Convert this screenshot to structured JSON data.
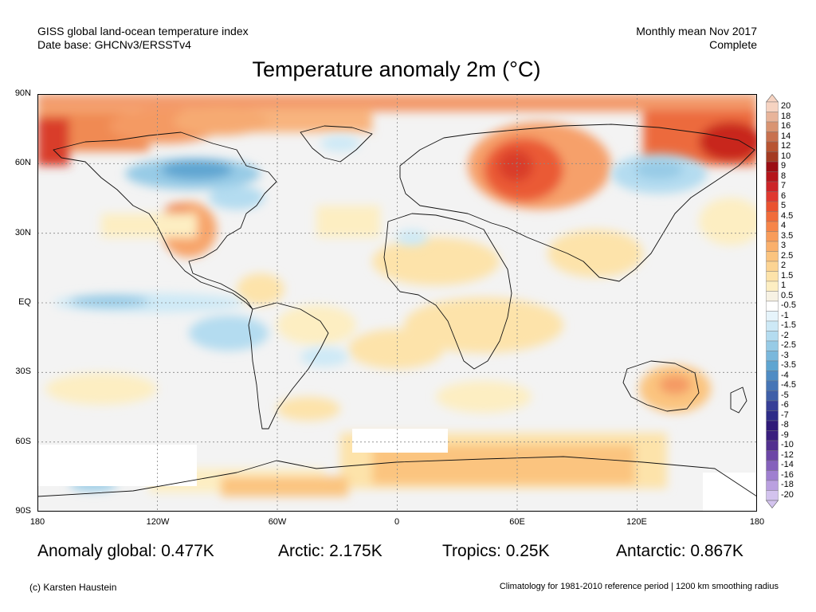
{
  "header": {
    "left_line1": "GISS global land-ocean temperature index",
    "left_line2": "Date base: GHCNv3/ERSSTv4",
    "right_line1": "Monthly mean Nov 2017",
    "right_line2": "Complete"
  },
  "title": "Temperature anomaly 2m (°C)",
  "axes": {
    "latitude_labels": [
      "90N",
      "60N",
      "30N",
      "EQ",
      "30S",
      "60S",
      "90S"
    ],
    "longitude_labels": [
      "180",
      "120W",
      "60W",
      "0",
      "60E",
      "120E",
      "180"
    ]
  },
  "legend": {
    "labels": [
      "20",
      "18",
      "16",
      "14",
      "12",
      "10",
      "9",
      "8",
      "7",
      "6",
      "5",
      "4.5",
      "4",
      "3.5",
      "3",
      "2.5",
      "2",
      "1.5",
      "1",
      "0.5",
      "-0.5",
      "-1",
      "-1.5",
      "-2",
      "-2.5",
      "-3",
      "-3.5",
      "-4",
      "-4.5",
      "-5",
      "-6",
      "-7",
      "-8",
      "-9",
      "-10",
      "-12",
      "-14",
      "-16",
      "-18",
      "-20"
    ],
    "colors": [
      "#f6d3c1",
      "#e8b49a",
      "#d99472",
      "#c8714f",
      "#b85432",
      "#a43b22",
      "#9b0e14",
      "#b5151b",
      "#cc2428",
      "#e0382f",
      "#ea5230",
      "#f16c3a",
      "#f68549",
      "#f89c5a",
      "#fab06c",
      "#fbc47f",
      "#fcd493",
      "#fde3aa",
      "#fdeec2",
      "#f7f2e4",
      "#ffffff",
      "#e6f4fb",
      "#cde9f6",
      "#b4dcf0",
      "#97cbe6",
      "#7ab8dc",
      "#5ea5d1",
      "#4f8cc4",
      "#4675b6",
      "#3f5fa8",
      "#373f97",
      "#2e2c88",
      "#2f1a78",
      "#3a1f7e",
      "#52308f",
      "#6c46a6",
      "#8561bc",
      "#9f7fd0",
      "#baa0e0",
      "#d3c3ee"
    ],
    "arrow_top_color": "#f6d3c1",
    "arrow_bottom_color": "#d3c3ee"
  },
  "stats": {
    "global": "Anomaly global: 0.477K",
    "arctic": "Arctic: 2.175K",
    "tropics": "Tropics: 0.25K",
    "antarctic": "Antarctic: 0.867K"
  },
  "footer": {
    "copyright": "(c) Karsten Haustein",
    "note": "Climatology for 1981-2010 reference period | 1200 km smoothing radius"
  }
}
